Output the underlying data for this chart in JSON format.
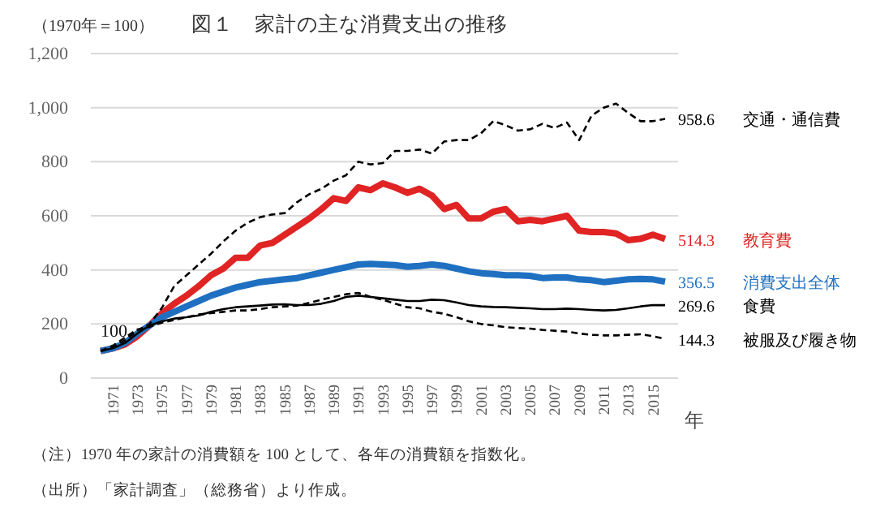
{
  "chart_data": {
    "type": "line",
    "title": "図１　家計の主な消費支出の推移",
    "ylabel": "（1970年＝100）",
    "xlabel": "年",
    "categories": [
      null,
      "1971",
      null,
      "1973",
      null,
      "1975",
      null,
      "1977",
      null,
      "1979",
      null,
      "1981",
      null,
      "1983",
      null,
      "1985",
      null,
      "1987",
      null,
      "1989",
      null,
      "1991",
      null,
      "1993",
      null,
      "1995",
      null,
      "1997",
      null,
      "1999",
      null,
      "2001",
      null,
      "2003",
      null,
      "2005",
      null,
      "2007",
      null,
      "2009",
      null,
      "2011",
      null,
      "2013",
      null,
      "2015",
      null
    ],
    "series": [
      {
        "name": "交通・通信費",
        "color": "#000000",
        "line_style": "dashed",
        "value_labels": [
          null,
          null,
          null,
          null,
          null,
          null,
          null,
          null,
          null,
          null,
          null,
          null,
          null,
          null,
          null,
          null,
          null,
          null,
          null,
          null,
          null,
          null,
          null,
          null,
          null,
          null,
          null,
          null,
          null,
          null,
          null,
          null,
          null,
          null,
          null,
          null,
          null,
          null,
          null,
          null,
          null,
          null,
          null,
          null,
          null,
          null,
          "958.6"
        ],
        "values": [
          100,
          115,
          140,
          175,
          200,
          260,
          340,
          380,
          420,
          460,
          505,
          545,
          575,
          595,
          605,
          610,
          650,
          680,
          700,
          730,
          750,
          800,
          790,
          795,
          840,
          840,
          845,
          830,
          875,
          880,
          880,
          905,
          950,
          935,
          915,
          920,
          940,
          925,
          945,
          880,
          970,
          1000,
          1015,
          980,
          950,
          950,
          958.6
        ]
      },
      {
        "name": "教育費",
        "color": "#e02424",
        "line_style": "solid",
        "value_labels": [
          null,
          null,
          null,
          null,
          null,
          null,
          null,
          null,
          null,
          null,
          null,
          null,
          null,
          null,
          null,
          null,
          null,
          null,
          null,
          null,
          null,
          null,
          null,
          null,
          null,
          null,
          null,
          null,
          null,
          null,
          null,
          null,
          null,
          null,
          null,
          null,
          null,
          null,
          null,
          null,
          null,
          null,
          null,
          null,
          null,
          null,
          "514.3"
        ],
        "values": [
          100,
          110,
          125,
          155,
          195,
          240,
          275,
          305,
          340,
          380,
          405,
          445,
          445,
          490,
          500,
          530,
          560,
          590,
          625,
          665,
          655,
          705,
          695,
          720,
          705,
          685,
          700,
          675,
          625,
          640,
          590,
          590,
          615,
          625,
          580,
          585,
          580,
          590,
          600,
          545,
          540,
          540,
          535,
          510,
          515,
          530,
          514.3
        ]
      },
      {
        "name": "消費支出全体",
        "color": "#1f70c1",
        "line_style": "solid",
        "value_labels": [
          null,
          null,
          null,
          null,
          null,
          null,
          null,
          null,
          null,
          null,
          null,
          null,
          null,
          null,
          null,
          null,
          null,
          null,
          null,
          null,
          null,
          null,
          null,
          null,
          null,
          null,
          null,
          null,
          null,
          null,
          null,
          null,
          null,
          null,
          null,
          null,
          null,
          null,
          null,
          null,
          null,
          null,
          null,
          null,
          null,
          null,
          "356.5"
        ],
        "values": [
          100,
          110,
          130,
          165,
          195,
          225,
          245,
          265,
          285,
          305,
          320,
          335,
          345,
          355,
          360,
          365,
          370,
          380,
          390,
          400,
          410,
          420,
          422,
          420,
          418,
          412,
          415,
          420,
          415,
          405,
          395,
          388,
          385,
          380,
          380,
          378,
          370,
          372,
          372,
          365,
          362,
          355,
          360,
          365,
          367,
          365,
          356.5
        ]
      },
      {
        "name": "食費",
        "color": "#000000",
        "line_style": "solid",
        "value_labels": [
          null,
          null,
          null,
          null,
          null,
          null,
          null,
          null,
          null,
          null,
          null,
          null,
          null,
          null,
          null,
          null,
          null,
          null,
          null,
          null,
          null,
          null,
          null,
          null,
          null,
          null,
          null,
          null,
          null,
          null,
          null,
          null,
          null,
          null,
          null,
          null,
          null,
          null,
          null,
          null,
          null,
          null,
          null,
          null,
          null,
          null,
          "269.6"
        ],
        "values": [
          100,
          110,
          130,
          165,
          195,
          210,
          220,
          225,
          232,
          245,
          255,
          262,
          265,
          268,
          272,
          273,
          270,
          270,
          275,
          285,
          300,
          305,
          300,
          295,
          290,
          285,
          285,
          290,
          288,
          280,
          270,
          265,
          263,
          262,
          260,
          258,
          255,
          255,
          257,
          255,
          252,
          250,
          252,
          258,
          265,
          270,
          269.6
        ]
      },
      {
        "name": "被服及び履き物",
        "color": "#000000",
        "line_style": "dashed",
        "value_labels": [
          null,
          null,
          null,
          null,
          null,
          null,
          null,
          null,
          null,
          null,
          null,
          null,
          null,
          null,
          null,
          null,
          null,
          null,
          null,
          null,
          null,
          null,
          null,
          null,
          null,
          null,
          null,
          null,
          null,
          null,
          null,
          null,
          null,
          null,
          null,
          null,
          null,
          null,
          null,
          null,
          null,
          null,
          null,
          null,
          null,
          null,
          "144.3"
        ],
        "values": [
          100,
          120,
          150,
          180,
          190,
          205,
          215,
          225,
          235,
          240,
          245,
          250,
          250,
          255,
          262,
          265,
          268,
          278,
          290,
          300,
          310,
          315,
          300,
          290,
          275,
          262,
          258,
          245,
          238,
          225,
          210,
          200,
          195,
          188,
          185,
          183,
          178,
          175,
          172,
          165,
          160,
          158,
          158,
          160,
          162,
          155,
          144.3
        ]
      }
    ],
    "ylim": [
      0,
      1200
    ],
    "yticks": [
      0,
      {
        "value": 200,
        "label": "200"
      },
      400,
      600,
      800,
      {
        "value": 1000,
        "label": "1,000"
      },
      {
        "value": 1200,
        "label": "1,200"
      }
    ],
    "grid": "y",
    "legend": false,
    "annotations": [
      {
        "text": "100",
        "y": 100
      },
      "（注）1970 年の家計の消費額を 100 として、各年の消費額を指数化。",
      "（出所）「家計調査」（総務省）より作成。"
    ]
  }
}
